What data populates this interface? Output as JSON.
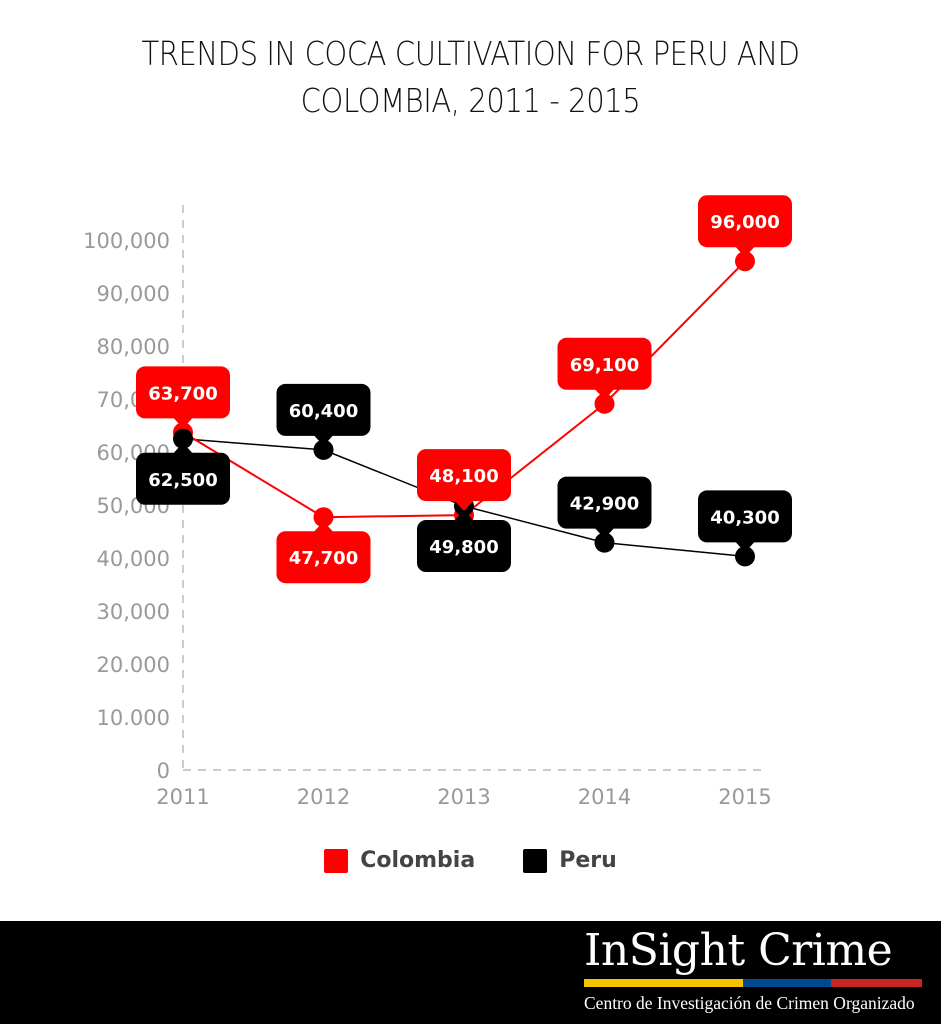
{
  "title": {
    "line1": "TRENDS IN COCA CULTIVATION FOR PERU AND",
    "line2": "COLOMBIA, 2011 - 2015"
  },
  "colors": {
    "colombia": "#ff0000",
    "peru": "#000000",
    "axis_text": "#999999",
    "grid": "#cccccc"
  },
  "legend": [
    {
      "label": "Colombia",
      "color": "#ff0000"
    },
    {
      "label": "Peru",
      "color": "#000000"
    }
  ],
  "footer": {
    "brand": "InSight Crime",
    "tagline": "Centro de Investigación de Crimen Organizado",
    "bar_colors": [
      "#f5c400",
      "#004a8f",
      "#c8261e"
    ]
  },
  "chart_data": {
    "type": "line",
    "title": "TRENDS IN COCA CULTIVATION FOR PERU AND COLOMBIA, 2011 - 2015",
    "xlabel": "",
    "ylabel": "",
    "x": [
      "2011",
      "2012",
      "2013",
      "2014",
      "2015"
    ],
    "y_ticks": [
      "0",
      "10.000",
      "20.000",
      "30,000",
      "40,000",
      "50,000",
      "60,000",
      "70,000",
      "80,000",
      "90,000",
      "100,000"
    ],
    "ylim": [
      0,
      100000
    ],
    "grid": false,
    "legend_position": "bottom",
    "series": [
      {
        "name": "Colombia",
        "color": "#ff0000",
        "values": [
          63700,
          47700,
          48100,
          69100,
          96000
        ],
        "labels": [
          "63,700",
          "47,700",
          "48,100",
          "69,100",
          "96,000"
        ]
      },
      {
        "name": "Peru",
        "color": "#000000",
        "values": [
          62500,
          60400,
          49800,
          42900,
          40300
        ],
        "labels": [
          "62,500",
          "60,400",
          "49,800",
          "42,900",
          "40,300"
        ]
      }
    ]
  }
}
